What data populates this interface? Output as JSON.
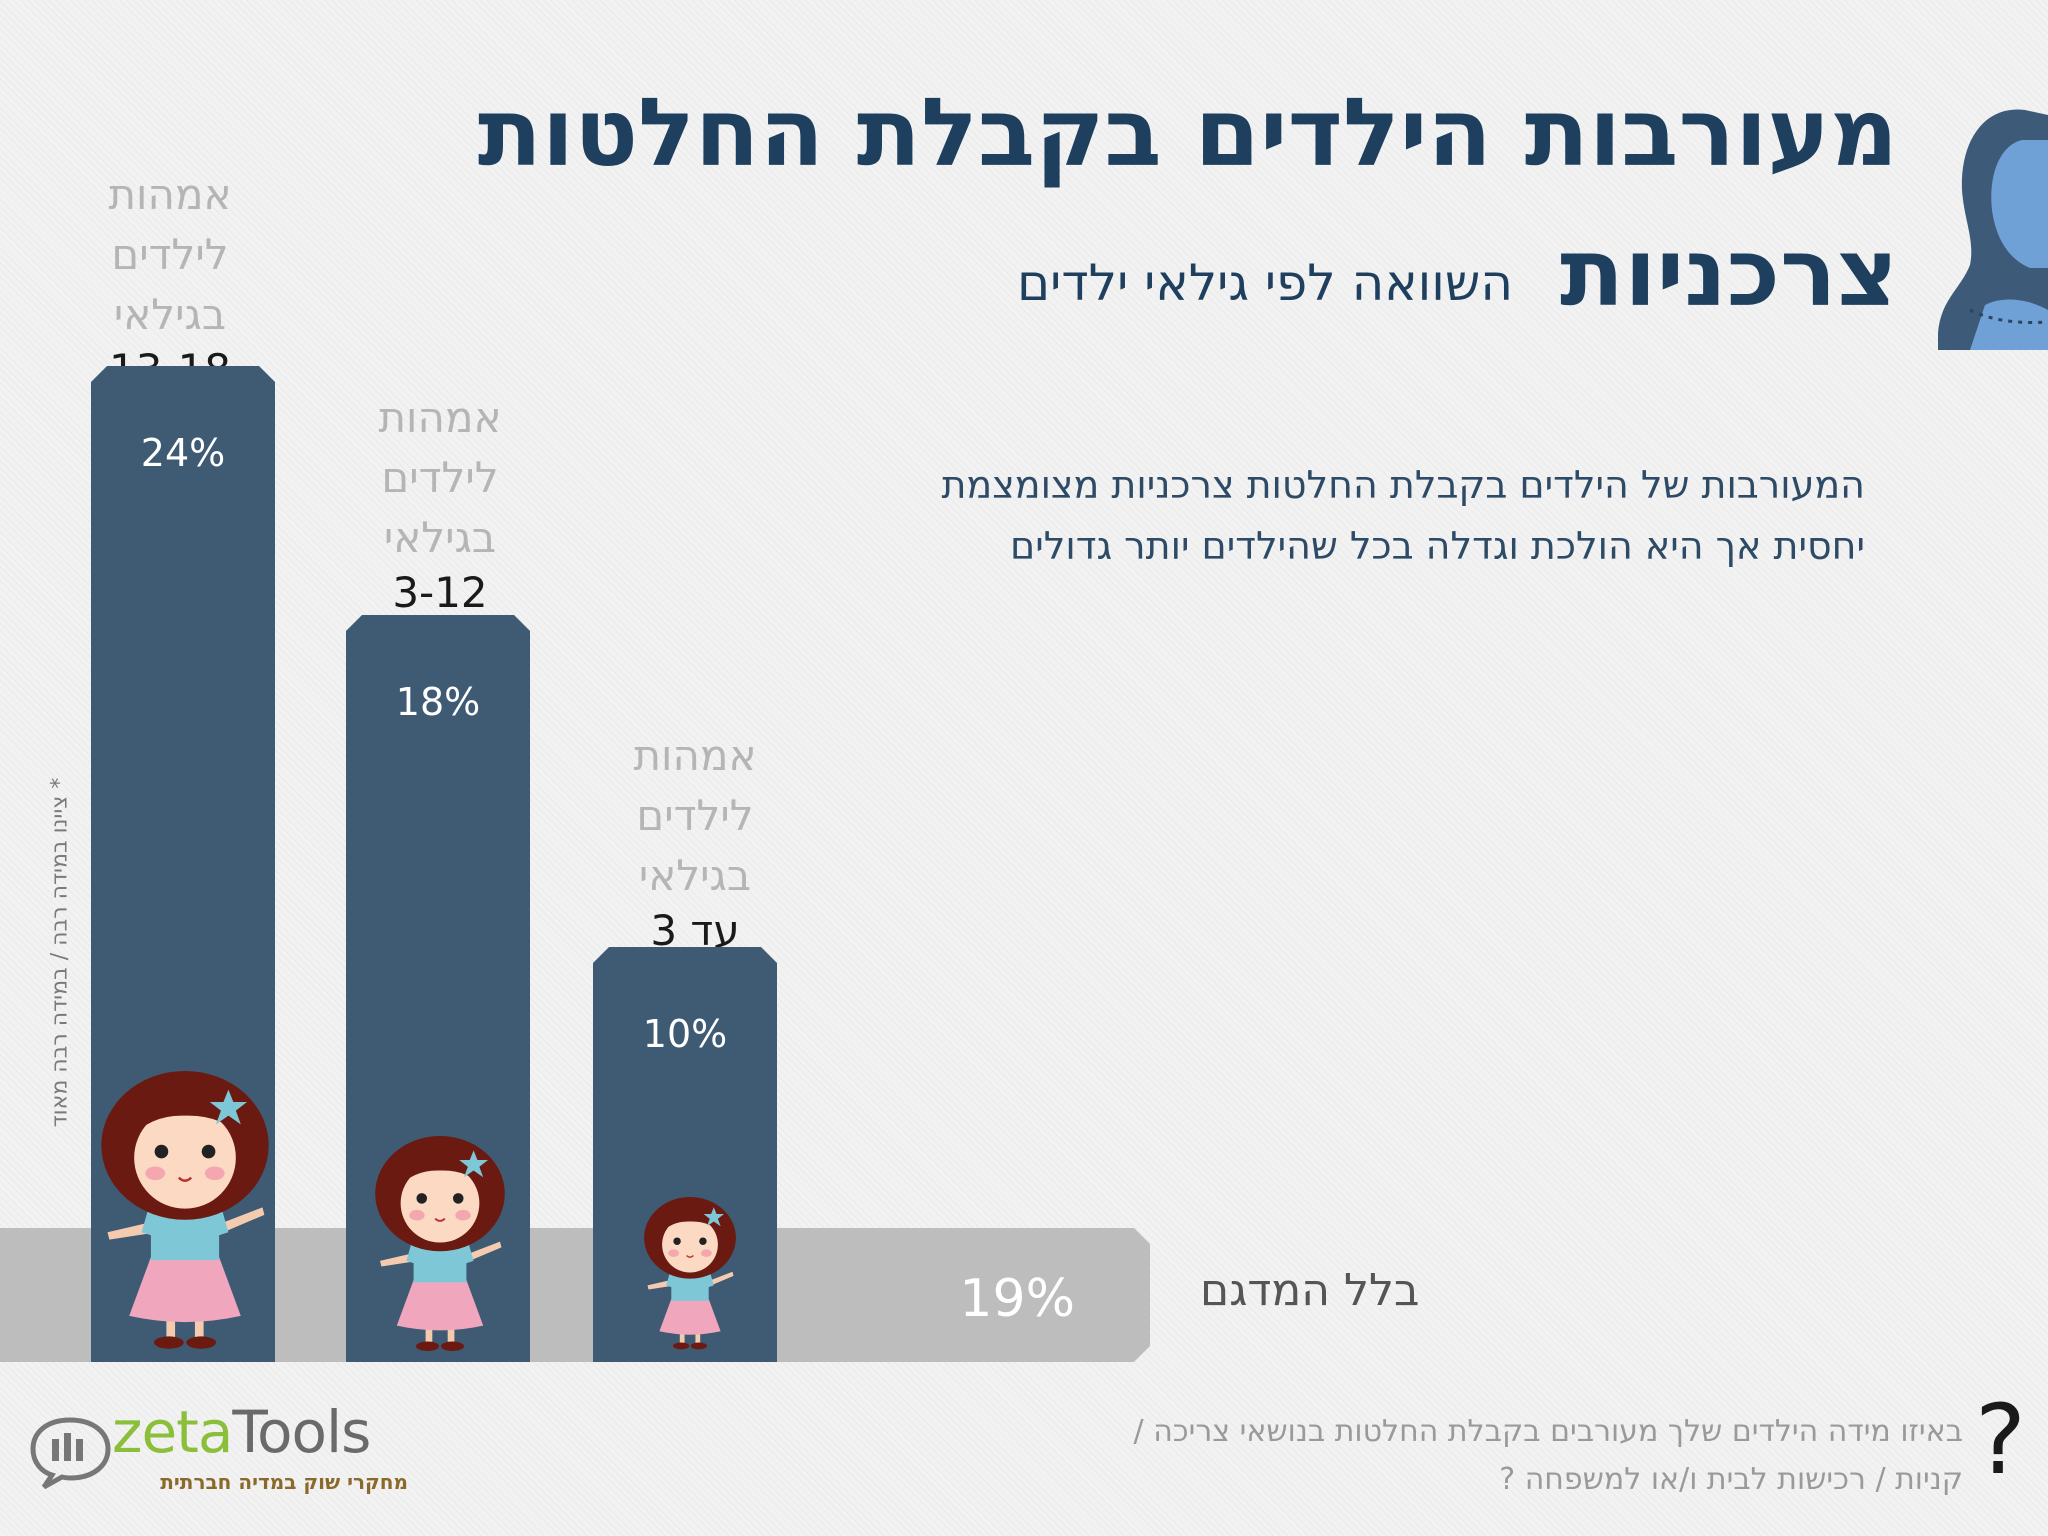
{
  "title": {
    "line1": "מעורבות הילדים בקבלת החלטות",
    "line2": "צרכניות",
    "subtitle": "השוואה לפי גילאי ילדים"
  },
  "description": "המעורבות של הילדים בקבלת החלטות צרכניות מצומצמת יחסית אך היא הולכת וגדלה בכל שהילדים יותר גדולים",
  "side_note": "* ציינו במידה רבה / במידה רבה מאוד",
  "question": "באיזו מידה הילדים שלך מעורבים בקבלת החלטות בנושאי צריכה / קניות / רכישות לבית ו/או למשפחה ?",
  "question_mark": "?",
  "logo": {
    "part1": "zeta",
    "part2": "Tools",
    "tagline": "מחקרי שוק במדיה חברתית"
  },
  "colors": {
    "bar": "#3f5a73",
    "total_bar": "#bdbdbd",
    "title": "#1f3f5f"
  },
  "chart_data": {
    "type": "bar",
    "categories": [
      {
        "label_lines": [
          "אמהות",
          "לילדים",
          "בגילאי"
        ],
        "age": "13-18"
      },
      {
        "label_lines": [
          "אמהות",
          "לילדים",
          "בגילאי"
        ],
        "age": "3-12"
      },
      {
        "label_lines": [
          "אמהות",
          "לילדים",
          "בגילאי"
        ],
        "age": "עד 3"
      }
    ],
    "values": [
      24,
      18,
      10
    ],
    "value_labels": [
      "24%",
      "18%",
      "10%"
    ],
    "total": {
      "label": "בלל המדגם",
      "value": 19,
      "value_label": "19%"
    },
    "ylim": [
      0,
      30
    ]
  }
}
